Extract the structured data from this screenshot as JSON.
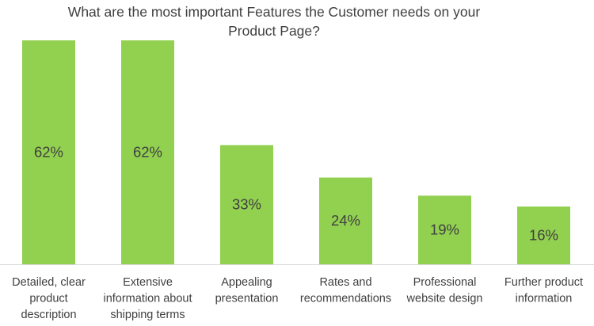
{
  "chart_data": {
    "type": "bar",
    "title_lines": [
      "What are the most important Features the Customer needs on your",
      "Product Page?"
    ],
    "categories": [
      [
        "Detailed, clear",
        "product",
        "description"
      ],
      [
        "Extensive",
        "information about",
        "shipping terms"
      ],
      [
        "Appealing",
        "presentation"
      ],
      [
        "Rates and",
        "recommendations"
      ],
      [
        "Professional",
        "website design"
      ],
      [
        "Further product",
        "information"
      ]
    ],
    "values": [
      62,
      62,
      33,
      24,
      19,
      16
    ],
    "data_labels": [
      "62%",
      "62%",
      "33%",
      "24%",
      "19%",
      "16%"
    ],
    "unit": "%",
    "xlabel": "",
    "ylabel": "",
    "grid": false,
    "legend": "none",
    "colors": {
      "bar": "#92d050",
      "text": "#404040",
      "axis": "#d9d9d9"
    }
  }
}
